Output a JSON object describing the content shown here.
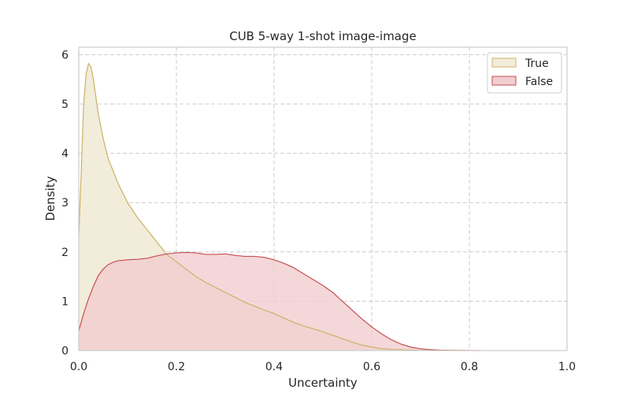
{
  "chart_data": {
    "type": "area",
    "title": "CUB 5-way 1-shot image-image",
    "xlabel": "Uncertainty",
    "ylabel": "Density",
    "xlim": [
      0.0,
      1.0
    ],
    "ylim": [
      0,
      6.15
    ],
    "xticks": [
      0.0,
      0.2,
      0.4,
      0.6,
      0.8,
      1.0
    ],
    "xtick_labels": [
      "0.0",
      "0.2",
      "0.4",
      "0.6",
      "0.8",
      "1.0"
    ],
    "yticks": [
      0,
      1,
      2,
      3,
      4,
      5,
      6
    ],
    "ytick_labels": [
      "0",
      "1",
      "2",
      "3",
      "4",
      "5",
      "6"
    ],
    "grid": true,
    "legend_position": "top-right",
    "series": [
      {
        "name": "True",
        "fill": "#f2ecdb",
        "stroke": "#ccb264",
        "x": [
          0.0,
          0.005,
          0.01,
          0.015,
          0.02,
          0.025,
          0.03,
          0.04,
          0.05,
          0.06,
          0.08,
          0.1,
          0.12,
          0.14,
          0.16,
          0.18,
          0.2,
          0.22,
          0.24,
          0.26,
          0.28,
          0.3,
          0.32,
          0.34,
          0.36,
          0.38,
          0.4,
          0.42,
          0.44,
          0.46,
          0.48,
          0.5,
          0.52,
          0.54,
          0.56,
          0.58,
          0.6,
          0.62,
          0.64,
          0.66,
          0.68,
          0.7,
          0.72,
          0.75,
          0.8
        ],
        "y": [
          2.3,
          3.6,
          5.0,
          5.6,
          5.82,
          5.75,
          5.5,
          4.8,
          4.3,
          3.9,
          3.4,
          3.0,
          2.7,
          2.45,
          2.2,
          1.95,
          1.8,
          1.65,
          1.5,
          1.38,
          1.28,
          1.18,
          1.08,
          0.98,
          0.9,
          0.82,
          0.75,
          0.66,
          0.57,
          0.5,
          0.44,
          0.38,
          0.31,
          0.24,
          0.17,
          0.11,
          0.07,
          0.04,
          0.025,
          0.015,
          0.008,
          0.005,
          0.003,
          0.001,
          0.0
        ]
      },
      {
        "name": "False",
        "fill": "#f1cdd0",
        "stroke": "#c44e52",
        "x": [
          0.0,
          0.01,
          0.02,
          0.03,
          0.04,
          0.05,
          0.06,
          0.07,
          0.08,
          0.09,
          0.1,
          0.12,
          0.14,
          0.16,
          0.18,
          0.2,
          0.22,
          0.24,
          0.26,
          0.28,
          0.3,
          0.32,
          0.34,
          0.36,
          0.38,
          0.4,
          0.42,
          0.44,
          0.46,
          0.48,
          0.5,
          0.52,
          0.54,
          0.56,
          0.58,
          0.6,
          0.62,
          0.64,
          0.66,
          0.68,
          0.7,
          0.72,
          0.74,
          0.76,
          0.78,
          0.8,
          0.82
        ],
        "y": [
          0.4,
          0.75,
          1.05,
          1.3,
          1.52,
          1.65,
          1.74,
          1.79,
          1.82,
          1.83,
          1.84,
          1.85,
          1.87,
          1.92,
          1.96,
          1.98,
          1.99,
          1.98,
          1.95,
          1.95,
          1.96,
          1.93,
          1.91,
          1.91,
          1.89,
          1.84,
          1.77,
          1.68,
          1.56,
          1.44,
          1.32,
          1.18,
          1.0,
          0.82,
          0.64,
          0.48,
          0.34,
          0.22,
          0.13,
          0.07,
          0.035,
          0.018,
          0.008,
          0.004,
          0.002,
          0.001,
          0.0
        ]
      }
    ]
  }
}
